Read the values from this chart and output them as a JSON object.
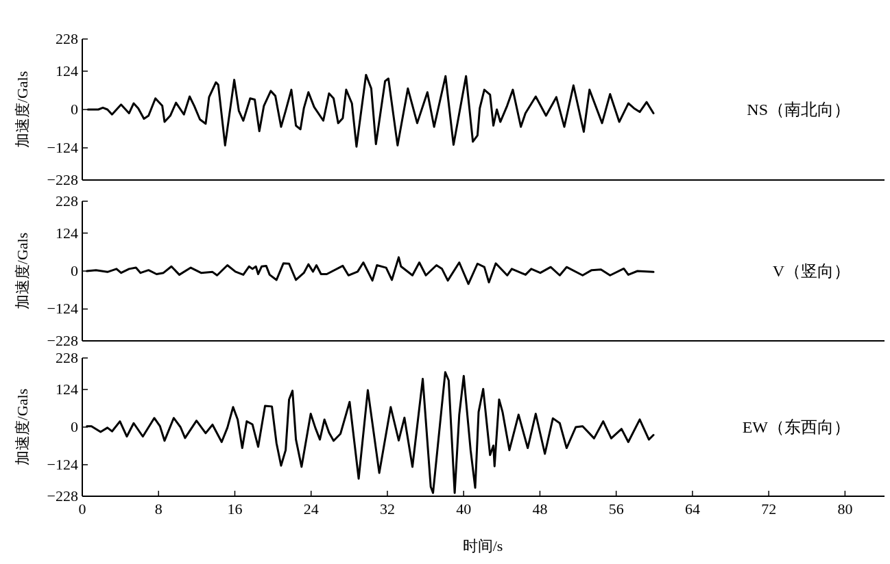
{
  "chart_data": [
    {
      "type": "line",
      "ylabel": "加速度/Gals",
      "xlim": [
        0,
        84
      ],
      "ylim": [
        -228,
        228
      ],
      "yticks": [
        228,
        124,
        0,
        -124,
        -228
      ],
      "tick_labels": "y",
      "series": [
        {
          "name": "NS（南北向）",
          "color": "#000000",
          "x": [
            0.6,
            1.68,
            2.16,
            2.64,
            3.12,
            4.07,
            4.91,
            5.39,
            5.87,
            6.47,
            6.95,
            7.67,
            8.39,
            8.63,
            9.23,
            9.83,
            10.66,
            11.26,
            11.74,
            12.34,
            12.94,
            13.3,
            14.02,
            14.26,
            14.98,
            15.94,
            16.42,
            16.89,
            17.61,
            18.09,
            18.57,
            19.05,
            19.77,
            20.25,
            20.85,
            21.33,
            21.93,
            22.41,
            22.88,
            23.24,
            23.72,
            24.32,
            25.28,
            25.88,
            26.36,
            26.84,
            27.32,
            27.68,
            28.28,
            28.76,
            29.76,
            30.31,
            30.8,
            31.76,
            32.11,
            33.07,
            34.15,
            35.13,
            36.2,
            36.9,
            38.1,
            38.94,
            40.25,
            40.97,
            41.45,
            41.69,
            42.17,
            42.77,
            43.12,
            43.48,
            43.85,
            44.56,
            45.16,
            46.0,
            46.48,
            47.56,
            48.64,
            49.72,
            50.56,
            51.52,
            52.6,
            53.2,
            54.52,
            55.36,
            56.32,
            57.28,
            57.87,
            58.47,
            59.19,
            59.91
          ],
          "values": [
            0,
            0,
            6,
            0,
            -16,
            16,
            -12,
            20,
            4,
            -30,
            -20,
            36,
            12,
            -40,
            -20,
            22,
            -16,
            42,
            12,
            -32,
            -46,
            40,
            88,
            80,
            -116,
            96,
            -4,
            -36,
            36,
            32,
            -70,
            12,
            60,
            44,
            -56,
            -4,
            64,
            -52,
            -64,
            4,
            56,
            8,
            -36,
            52,
            36,
            -44,
            -28,
            64,
            20,
            -120,
            112,
            68,
            -112,
            92,
            100,
            -116,
            68,
            -44,
            56,
            -56,
            108,
            -114,
            108,
            -104,
            -84,
            4,
            64,
            48,
            -52,
            0,
            -40,
            12,
            64,
            -56,
            -12,
            42,
            -20,
            40,
            -56,
            78,
            -72,
            64,
            -44,
            50,
            -40,
            20,
            4,
            -8,
            24,
            -12
          ]
        }
      ]
    },
    {
      "type": "line",
      "ylabel": "加速度/Gals",
      "xlim": [
        0,
        84
      ],
      "ylim": [
        -228,
        228
      ],
      "yticks": [
        228,
        124,
        0,
        -124,
        -228
      ],
      "tick_labels": "y",
      "series": [
        {
          "name": "V（竖向）",
          "color": "#000000",
          "x": [
            0.48,
            1.44,
            2.64,
            3.59,
            4.07,
            4.91,
            5.63,
            6.11,
            6.95,
            7.79,
            8.51,
            9.35,
            10.18,
            11.38,
            12.46,
            13.66,
            14.14,
            15.22,
            16.06,
            16.89,
            17.49,
            17.85,
            18.21,
            18.45,
            18.81,
            19.29,
            19.65,
            20.37,
            21.09,
            21.69,
            22.41,
            23.24,
            23.72,
            24.2,
            24.56,
            25.04,
            25.64,
            27.32,
            27.92,
            28.88,
            29.48,
            30.43,
            30.91,
            31.87,
            32.47,
            33.19,
            33.43,
            34.63,
            35.35,
            36.04,
            37.15,
            37.73,
            38.34,
            39.54,
            40.5,
            41.45,
            42.17,
            42.65,
            43.37,
            44.57,
            45.05,
            46.49,
            47.09,
            48.04,
            49.13,
            50.08,
            50.8,
            52.48,
            53.43,
            54.4,
            55.36,
            56.8,
            57.27,
            58.23,
            59.91
          ],
          "values": [
            0,
            3,
            -3,
            7,
            -6,
            7,
            11,
            -6,
            3,
            -10,
            -6,
            15,
            -12,
            11,
            -6,
            -3,
            -14,
            19,
            -2,
            -12,
            15,
            7,
            15,
            -10,
            15,
            17,
            -12,
            -29,
            25,
            24,
            -29,
            -6,
            22,
            -2,
            19,
            -10,
            -10,
            17,
            -14,
            -2,
            28,
            -31,
            19,
            11,
            -29,
            45,
            15,
            -14,
            28,
            -14,
            19,
            7,
            -31,
            28,
            -42,
            24,
            13,
            -37,
            25,
            -14,
            7,
            -12,
            7,
            -6,
            13,
            -14,
            13,
            -14,
            3,
            5,
            -14,
            8,
            -12,
            0,
            -3
          ]
        }
      ]
    },
    {
      "type": "line",
      "ylabel": "加速度/Gals",
      "xlabel": "时间/s",
      "xlim": [
        0,
        84
      ],
      "xticks": [
        0,
        8,
        16,
        24,
        32,
        40,
        48,
        56,
        64,
        72,
        80
      ],
      "ylim": [
        -228,
        228
      ],
      "yticks": [
        228,
        124,
        0,
        -124,
        -228
      ],
      "series": [
        {
          "name": "EW（东西向）",
          "color": "#000000",
          "x": [
            0.48,
            0.96,
            1.92,
            2.64,
            3.12,
            3.95,
            4.67,
            5.39,
            6.35,
            7.55,
            8.15,
            8.63,
            9.59,
            10.3,
            10.78,
            11.98,
            12.94,
            13.66,
            14.62,
            15.22,
            15.82,
            16.3,
            16.78,
            17.25,
            17.85,
            18.45,
            19.17,
            19.89,
            20.37,
            20.85,
            21.33,
            21.69,
            22.05,
            22.41,
            23.0,
            23.96,
            24.44,
            24.92,
            25.4,
            25.88,
            26.36,
            27.08,
            28.04,
            28.99,
            29.95,
            31.15,
            32.35,
            33.19,
            33.79,
            34.63,
            35.71,
            36.55,
            36.79,
            38.07,
            38.43,
            39.06,
            39.54,
            40.01,
            40.73,
            41.21,
            41.57,
            42.05,
            42.77,
            43.12,
            43.24,
            43.72,
            44.08,
            44.8,
            45.76,
            46.72,
            47.56,
            48.52,
            49.36,
            50.08,
            50.8,
            51.76,
            52.48,
            53.68,
            54.64,
            55.48,
            56.56,
            57.27,
            58.47,
            59.43,
            59.91
          ],
          "values": [
            3,
            3,
            -16,
            -2,
            -14,
            19,
            -31,
            13,
            -31,
            30,
            3,
            -45,
            30,
            0,
            -36,
            21,
            -20,
            8,
            -49,
            -2,
            66,
            25,
            -69,
            19,
            9,
            -65,
            70,
            68,
            -53,
            -127,
            -76,
            91,
            120,
            -41,
            -131,
            44,
            -2,
            -41,
            25,
            -18,
            -45,
            -22,
            83,
            -170,
            122,
            -151,
            66,
            -44,
            31,
            -131,
            159,
            -197,
            -217,
            181,
            154,
            -217,
            41,
            169,
            -76,
            -200,
            50,
            126,
            -92,
            -61,
            -129,
            91,
            50,
            -76,
            41,
            -69,
            44,
            -88,
            29,
            13,
            -69,
            0,
            3,
            -37,
            19,
            -37,
            -6,
            -49,
            25,
            -41,
            -26
          ]
        }
      ]
    }
  ]
}
